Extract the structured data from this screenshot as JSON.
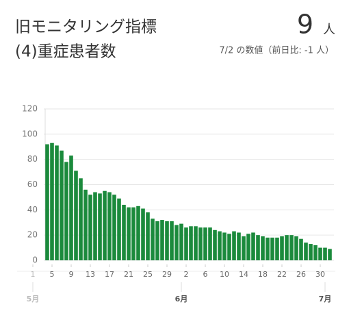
{
  "header": {
    "title": "旧モニタリング指標",
    "subtitle": "(4)重症患者数",
    "value": "9",
    "unit": "人",
    "note": "7/2 の数値（前日比: -1 人）"
  },
  "chart_data": {
    "type": "bar",
    "color": "#1b8a3c",
    "categories": [
      "1",
      null,
      null,
      null,
      "5",
      null,
      null,
      null,
      "9",
      null,
      null,
      null,
      "13",
      null,
      null,
      null,
      "17",
      null,
      null,
      null,
      "21",
      null,
      null,
      null,
      "25",
      null,
      null,
      null,
      "29",
      null,
      null,
      null,
      "2",
      null,
      null,
      null,
      "6",
      null,
      null,
      null,
      "10",
      null,
      null,
      null,
      "14",
      null,
      null,
      null,
      "18",
      null,
      null,
      null,
      "22",
      null,
      null,
      null,
      "26",
      null,
      null,
      null,
      "30",
      null,
      null
    ],
    "values": [
      null,
      null,
      null,
      92,
      93,
      91,
      87,
      78,
      83,
      71,
      65,
      56,
      52,
      54,
      53,
      55,
      54,
      52,
      49,
      44,
      42,
      42,
      43,
      41,
      38,
      33,
      31,
      32,
      31,
      31,
      28,
      29,
      26,
      27,
      27,
      26,
      26,
      26,
      24,
      23,
      22,
      21,
      23,
      22,
      19,
      21,
      22,
      20,
      19,
      18,
      18,
      18,
      19,
      20,
      20,
      19,
      17,
      14,
      13,
      12,
      10,
      10,
      9
    ],
    "months": [
      "5月",
      "6月",
      "7月"
    ],
    "ylim": [
      0,
      120
    ],
    "yticks": [
      0,
      20,
      40,
      60,
      80,
      100,
      120
    ],
    "grid": true
  }
}
